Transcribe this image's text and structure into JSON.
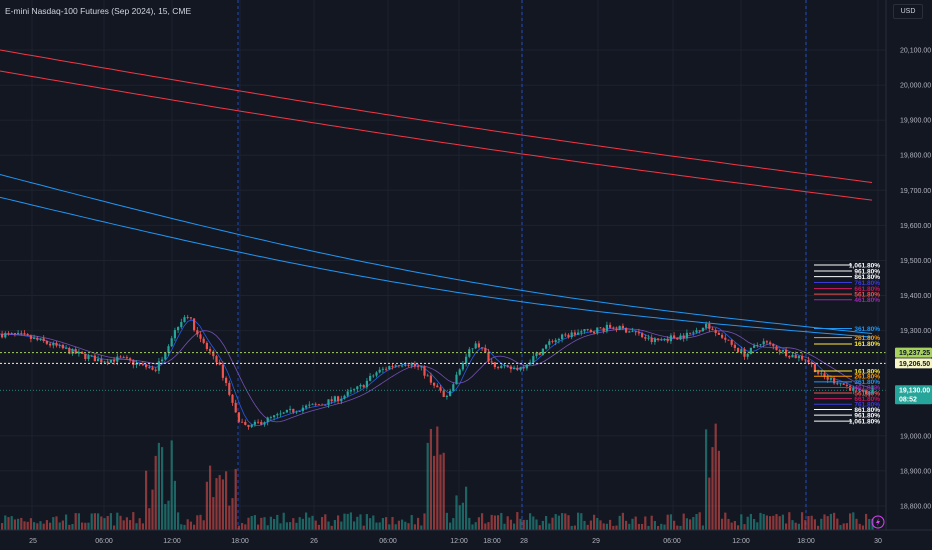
{
  "header": {
    "title": "E-mini Nasdaq-100 Futures (Sep 2024), 15, CME",
    "currency": "USD"
  },
  "price_axis": {
    "ticks": [
      "20,100.00",
      "20,000.00",
      "19,900.00",
      "19,800.00",
      "19,700.00",
      "19,600.00",
      "19,500.00",
      "19,400.00",
      "19,300.00",
      "19,000.00",
      "18,900.00",
      "18,800.00"
    ],
    "ymin": 18760,
    "ymax": 20160
  },
  "time_axis": {
    "labels": [
      "25",
      "06:00",
      "12:00",
      "18:00",
      "26",
      "06:00",
      "12:00",
      "18:00",
      "28",
      "29",
      "06:00",
      "12:00",
      "18:00",
      "30"
    ]
  },
  "price_tags": [
    {
      "value": "19,237.25",
      "price": 19237.25,
      "bg": "#a5d15f",
      "fg": "#131722"
    },
    {
      "value": "19,206.50",
      "price": 19206.5,
      "bg": "#f5f5c6",
      "fg": "#131722"
    },
    {
      "value": "19,130.00",
      "price": 19130,
      "bg": "#26a69a",
      "fg": "#ffffff",
      "sub": "08:52"
    }
  ],
  "fib_levels": [
    {
      "label": "1,061.80%",
      "price": 19487,
      "color": "#ffffff"
    },
    {
      "label": "961.80%",
      "price": 19470,
      "color": "#ffffff"
    },
    {
      "label": "861.80%",
      "price": 19454,
      "color": "#ffffff"
    },
    {
      "label": "761.80%",
      "price": 19437,
      "color": "#3d3bd6"
    },
    {
      "label": "661.80%",
      "price": 19420,
      "color": "#c2185b"
    },
    {
      "label": "561.80%",
      "price": 19404,
      "color": "#ef5350"
    },
    {
      "label": "461.80%",
      "price": 19388,
      "color": "#9c27b0"
    },
    {
      "label": "361.80%",
      "price": 19306,
      "color": "#2196f3"
    },
    {
      "label": "261.80%",
      "price": 19280,
      "color": "#ff9800"
    },
    {
      "label": "161.80%",
      "price": 19262,
      "color": "#ffeb3b"
    },
    {
      "label": "161.80%",
      "price": 19185,
      "color": "#ffeb3b"
    },
    {
      "label": "261.80%",
      "price": 19170,
      "color": "#ff9800"
    },
    {
      "label": "361.80%",
      "price": 19154,
      "color": "#2196f3"
    },
    {
      "label": "461.80%",
      "price": 19138,
      "color": "#9c27b0"
    },
    {
      "label": "561.80%",
      "price": 19122,
      "color": "#ef5350"
    },
    {
      "label": "661.80%",
      "price": 19106,
      "color": "#c2185b"
    },
    {
      "label": "761.80%",
      "price": 19090,
      "color": "#3d3bd6"
    },
    {
      "label": "861.80%",
      "price": 19075,
      "color": "#ffffff"
    },
    {
      "label": "961.80%",
      "price": 19059,
      "color": "#ffffff"
    },
    {
      "label": "1,061.80%",
      "price": 19042,
      "color": "#ffffff"
    }
  ],
  "colors": {
    "up": "#26a69a",
    "down": "#ef5350",
    "ma_red": "#f23645",
    "ma_blue": "#2962ff",
    "ma_purple": "#9c27b0",
    "session_line": "#2962ff"
  },
  "chart_data": {
    "type": "candlestick",
    "symbol": "E-mini Nasdaq-100 Futures (Sep 2024)",
    "interval": "15",
    "exchange": "CME",
    "y_range": [
      18760,
      20160
    ],
    "moving_averages": [
      {
        "color": "#f23645",
        "start": 20100,
        "end": 19720
      },
      {
        "color": "#f23645",
        "start": 20040,
        "end": 19670
      },
      {
        "color": "#2196f3",
        "start": 19745,
        "end": 19290
      },
      {
        "color": "#2196f3",
        "start": 19680,
        "end": 19280
      }
    ],
    "horizontal_levels": [
      19237.25,
      19206.5
    ]
  },
  "icons": {
    "lightning": "lightning-icon"
  }
}
